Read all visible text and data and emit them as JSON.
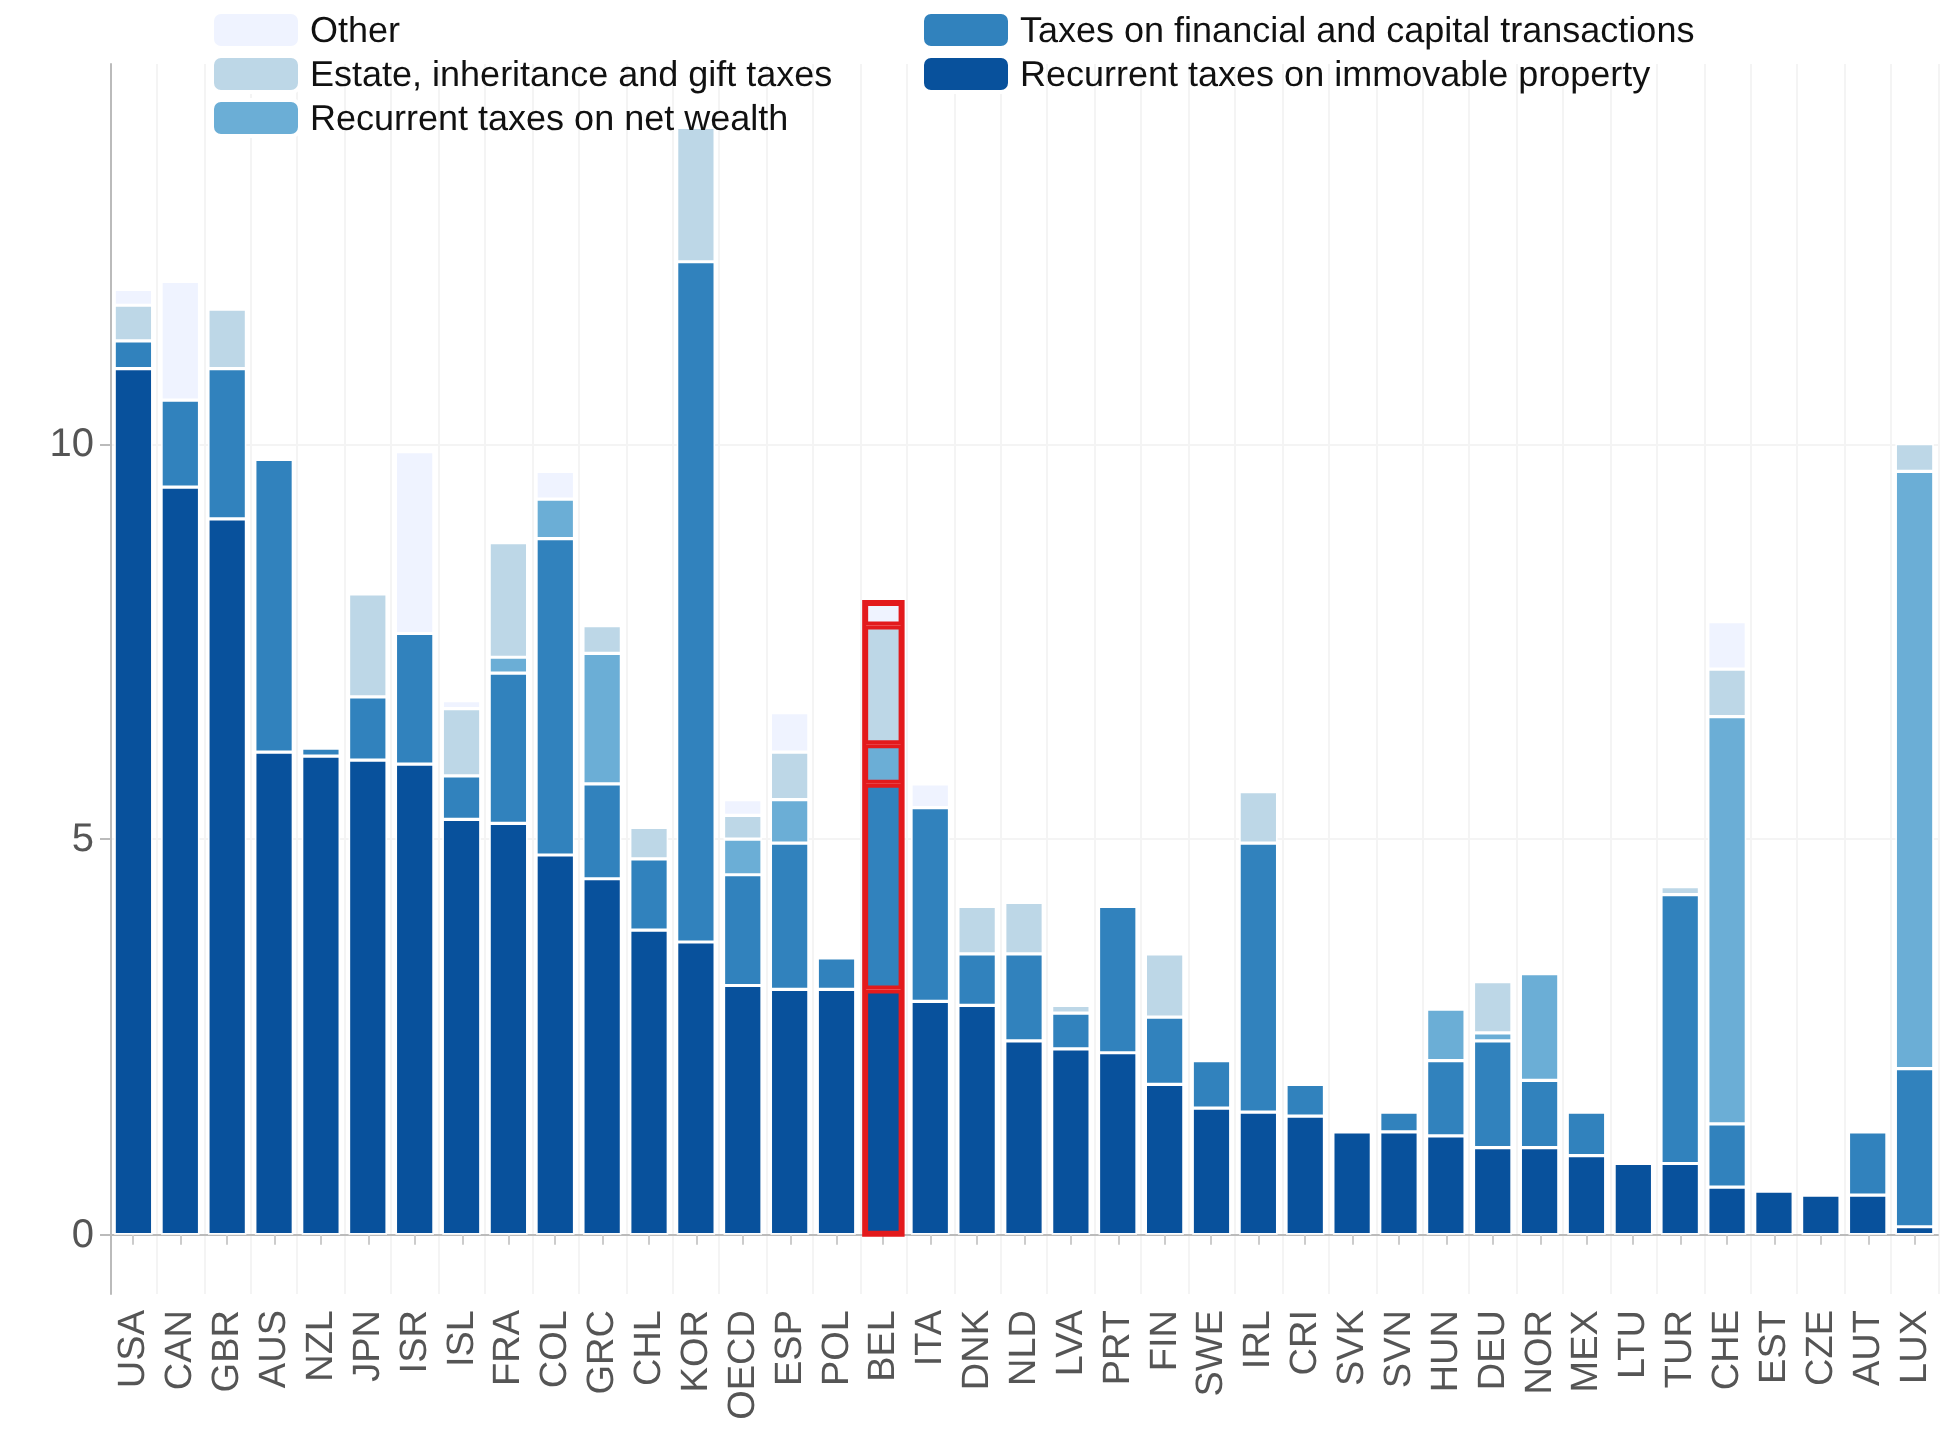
{
  "chart_data": {
    "type": "bar",
    "stacked": true,
    "categories": [
      "USA",
      "CAN",
      "GBR",
      "AUS",
      "NZL",
      "JPN",
      "ISR",
      "ISL",
      "FRA",
      "COL",
      "GRC",
      "CHL",
      "KOR",
      "OECD",
      "ESP",
      "POL",
      "BEL",
      "ITA",
      "DNK",
      "NLD",
      "LVA",
      "PRT",
      "FIN",
      "SWE",
      "IRL",
      "CRI",
      "SVK",
      "SVN",
      "HUN",
      "DEU",
      "NOR",
      "MEX",
      "LTU",
      "TUR",
      "CHE",
      "EST",
      "CZE",
      "AUT",
      "LUX"
    ],
    "series": [
      {
        "name": "Recurrent taxes on immovable property",
        "color": "#08519c",
        "values": [
          10.95,
          9.45,
          9.05,
          6.1,
          6.05,
          6.0,
          5.95,
          5.25,
          5.2,
          4.8,
          4.5,
          3.85,
          3.7,
          3.15,
          3.1,
          3.1,
          3.1,
          2.95,
          2.9,
          2.45,
          2.35,
          2.3,
          1.9,
          1.6,
          1.55,
          1.5,
          1.3,
          1.3,
          1.25,
          1.1,
          1.1,
          1.0,
          0.9,
          0.9,
          0.6,
          0.55,
          0.5,
          0.5,
          0.1
        ]
      },
      {
        "name": "Taxes on financial and capital transactions",
        "color": "#3182bd",
        "values": [
          0.35,
          1.1,
          1.9,
          3.7,
          0.1,
          0.8,
          1.65,
          0.55,
          1.9,
          4.0,
          1.2,
          0.9,
          8.6,
          1.4,
          1.85,
          0.4,
          2.6,
          2.45,
          0.65,
          1.1,
          0.45,
          1.85,
          0.85,
          0.6,
          3.4,
          0.4,
          0,
          0.25,
          0.95,
          1.35,
          0.85,
          0.55,
          0,
          3.4,
          0.8,
          0,
          0,
          0.8,
          2.0
        ]
      },
      {
        "name": "Recurrent taxes on net wealth",
        "color": "#6baed6",
        "values": [
          0,
          0,
          0,
          0,
          0,
          0,
          0,
          0,
          0.2,
          0.5,
          1.65,
          0,
          0,
          0.45,
          0.55,
          0,
          0.5,
          0,
          0,
          0,
          0,
          0,
          0,
          0,
          0,
          0,
          0,
          0,
          0.65,
          0.1,
          1.35,
          0,
          0,
          0,
          5.15,
          0,
          0,
          0,
          7.55
        ]
      },
      {
        "name": "Estate, inheritance and gift taxes",
        "color": "#bdd7e7",
        "values": [
          0.45,
          0,
          0.75,
          0,
          0,
          1.3,
          0,
          0.85,
          1.45,
          0,
          0.35,
          0.4,
          1.7,
          0.3,
          0.6,
          0,
          1.5,
          0,
          0.6,
          0.65,
          0.1,
          0,
          0.8,
          0,
          0.65,
          0,
          0,
          0,
          0,
          0.65,
          0,
          0,
          0,
          0.1,
          0.6,
          0,
          0,
          0,
          0.35
        ]
      },
      {
        "name": "Other",
        "color": "#eff3ff",
        "values": [
          0.2,
          1.5,
          0,
          0,
          0,
          0,
          2.3,
          0.1,
          0,
          0.35,
          0,
          0,
          0,
          0.2,
          0.5,
          0,
          0.3,
          0.3,
          0,
          0,
          0,
          0,
          0,
          0,
          0,
          0,
          0,
          0,
          0,
          0,
          0,
          0,
          0,
          0,
          0.6,
          0,
          0,
          0,
          0
        ]
      }
    ],
    "ylim": [
      -0.75,
      14.8
    ],
    "yticks": [
      0,
      5,
      10
    ],
    "grid": true,
    "legend": "top",
    "bands": [
      {
        "axis": "x",
        "from": "BEL",
        "to": "BEL",
        "color": "#e31a1c"
      }
    ]
  }
}
